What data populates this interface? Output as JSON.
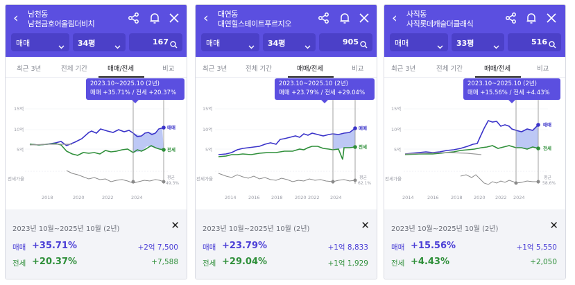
{
  "colors": {
    "brand": "#5b4fe0",
    "sale": "#4b3fd6",
    "rent": "#2f8f3a",
    "ratio": "#8b8b8b"
  },
  "icons": {
    "back": "chevron-left-icon",
    "share": "share-icon",
    "bell": "bell-icon",
    "close": "close-icon",
    "search": "search-icon",
    "dropdown": "chevron-down-icon"
  },
  "panels": [
    {
      "title": "남천동 남천금호어울림더비치",
      "trade_type": "매매",
      "size": "34평",
      "count": "167",
      "tabs": [
        "최근 3년",
        "전체 기간",
        "매매/전세",
        "비교"
      ],
      "tooltip": {
        "range": "2023.10~2025.10 (2년)",
        "sale": "매매 +35.71%",
        "sep": "/",
        "rent": "전세 +20.37%"
      },
      "chart": {
        "yticks": [
          "15억",
          "10억",
          "5억"
        ],
        "ratio_label": "전세가율",
        "xticks": [
          "2018",
          "2020",
          "2022",
          "2024"
        ],
        "series_sale": "매매",
        "series_rent": "전세",
        "avg_label": "평균",
        "avg_value": "49.3%"
      },
      "summary": {
        "range": "2023년 10월~2025년 10월 (2년)",
        "sale_label": "매매",
        "sale_pct": "+35.71%",
        "sale_amt": "+2억 7,500",
        "rent_label": "전세",
        "rent_pct": "+20.37%",
        "rent_amt": "+7,588"
      }
    },
    {
      "title": "대연동 대연힐스테이트푸르지오",
      "trade_type": "매매",
      "size": "34평",
      "count": "905",
      "tabs": [
        "최근 3년",
        "전체 기간",
        "매매/전세",
        "비교"
      ],
      "tooltip": {
        "range": "2023.10~2025.10 (2년)",
        "sale": "매매 +23.79%",
        "sep": "/",
        "rent": "전세 +29.04%"
      },
      "chart": {
        "yticks": [
          "15억",
          "10억",
          "5억"
        ],
        "ratio_label": "전세가율",
        "xticks": [
          "2014",
          "2016",
          "2018",
          "2020",
          "2022",
          "2024"
        ],
        "series_sale": "매매",
        "series_rent": "전세",
        "avg_label": "평균",
        "avg_value": "62.1%"
      },
      "summary": {
        "range": "2023년 10월~2025년 10월 (2년)",
        "sale_label": "매매",
        "sale_pct": "+23.79%",
        "sale_amt": "+1억 8,833",
        "rent_label": "전세",
        "rent_pct": "+29.04%",
        "rent_amt": "+1억 1,929"
      }
    },
    {
      "title": "사직동 사직롯데캐슬더클래식",
      "trade_type": "매매",
      "size": "33평",
      "count": "516",
      "tabs": [
        "최근 3년",
        "전체 기간",
        "매매/전세",
        "비교"
      ],
      "tooltip": {
        "range": "2023.10~2025.10 (2년)",
        "sale": "매매 +15.56%",
        "sep": "/",
        "rent": "전세 +4.43%"
      },
      "chart": {
        "yticks": [
          "15억",
          "10억",
          "5억"
        ],
        "ratio_label": "전세가율",
        "xticks": [
          "2014",
          "2016",
          "2018",
          "2020",
          "2022",
          "2024"
        ],
        "series_sale": "매매",
        "series_rent": "전세",
        "avg_label": "평균",
        "avg_value": "58.6%"
      },
      "summary": {
        "range": "2023년 10월~2025년 10월 (2년)",
        "sale_label": "매매",
        "sale_pct": "+15.56%",
        "sale_amt": "+1억 5,550",
        "rent_label": "전세",
        "rent_pct": "+4.43%",
        "rent_amt": "+2,050"
      }
    }
  ]
}
